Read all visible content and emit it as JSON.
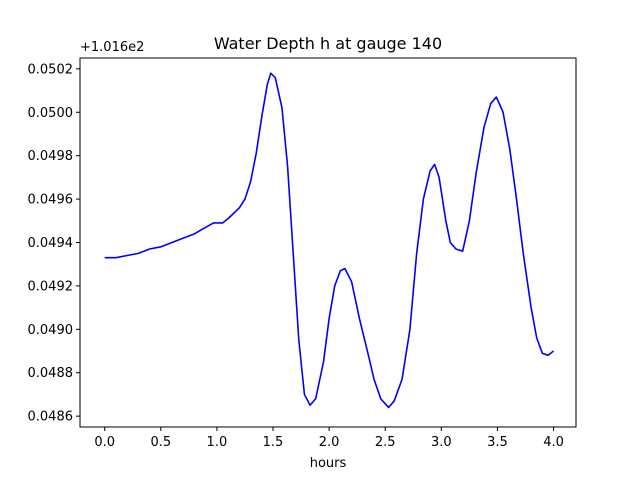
{
  "chart_data": {
    "type": "line",
    "title": "Water Depth h at gauge 140",
    "xlabel": "hours",
    "ylabel": "",
    "y_offset_label": "+1.016e2",
    "xlim": [
      -0.22,
      4.2
    ],
    "ylim": [
      0.04855,
      0.05025
    ],
    "x_ticks": [
      0.0,
      0.5,
      1.0,
      1.5,
      2.0,
      2.5,
      3.0,
      3.5,
      4.0
    ],
    "x_tick_labels": [
      "0.0",
      "0.5",
      "1.0",
      "1.5",
      "2.0",
      "2.5",
      "3.0",
      "3.5",
      "4.0"
    ],
    "y_ticks": [
      0.0486,
      0.0488,
      0.049,
      0.0492,
      0.0494,
      0.0496,
      0.0498,
      0.05,
      0.0502
    ],
    "y_tick_labels": [
      "0.0486",
      "0.0488",
      "0.0490",
      "0.0492",
      "0.0494",
      "0.0496",
      "0.0498",
      "0.0500",
      "0.0502"
    ],
    "grid": false,
    "series": [
      {
        "color": "#0000ff",
        "points": [
          [
            0.0,
            0.04933
          ],
          [
            0.1,
            0.04933
          ],
          [
            0.2,
            0.04934
          ],
          [
            0.3,
            0.04935
          ],
          [
            0.4,
            0.04937
          ],
          [
            0.5,
            0.04938
          ],
          [
            0.6,
            0.0494
          ],
          [
            0.7,
            0.04942
          ],
          [
            0.8,
            0.04944
          ],
          [
            0.9,
            0.04947
          ],
          [
            0.97,
            0.04949
          ],
          [
            1.05,
            0.04949
          ],
          [
            1.1,
            0.04951
          ],
          [
            1.2,
            0.04956
          ],
          [
            1.25,
            0.0496
          ],
          [
            1.3,
            0.04968
          ],
          [
            1.35,
            0.04981
          ],
          [
            1.4,
            0.04998
          ],
          [
            1.45,
            0.05013
          ],
          [
            1.48,
            0.05018
          ],
          [
            1.52,
            0.05016
          ],
          [
            1.58,
            0.05002
          ],
          [
            1.63,
            0.04975
          ],
          [
            1.68,
            0.04935
          ],
          [
            1.73,
            0.04895
          ],
          [
            1.78,
            0.0487
          ],
          [
            1.83,
            0.04865
          ],
          [
            1.88,
            0.04868
          ],
          [
            1.95,
            0.04885
          ],
          [
            2.0,
            0.04905
          ],
          [
            2.05,
            0.0492
          ],
          [
            2.1,
            0.04927
          ],
          [
            2.14,
            0.04928
          ],
          [
            2.2,
            0.04922
          ],
          [
            2.27,
            0.04905
          ],
          [
            2.35,
            0.04888
          ],
          [
            2.4,
            0.04877
          ],
          [
            2.46,
            0.04868
          ],
          [
            2.53,
            0.04864
          ],
          [
            2.58,
            0.04867
          ],
          [
            2.65,
            0.04877
          ],
          [
            2.72,
            0.049
          ],
          [
            2.78,
            0.04935
          ],
          [
            2.84,
            0.0496
          ],
          [
            2.9,
            0.04973
          ],
          [
            2.94,
            0.04976
          ],
          [
            2.98,
            0.0497
          ],
          [
            3.04,
            0.0495
          ],
          [
            3.08,
            0.0494
          ],
          [
            3.13,
            0.04937
          ],
          [
            3.19,
            0.04936
          ],
          [
            3.25,
            0.0495
          ],
          [
            3.31,
            0.04972
          ],
          [
            3.38,
            0.04993
          ],
          [
            3.44,
            0.05004
          ],
          [
            3.49,
            0.05007
          ],
          [
            3.55,
            0.05
          ],
          [
            3.61,
            0.04983
          ],
          [
            3.67,
            0.0496
          ],
          [
            3.73,
            0.04935
          ],
          [
            3.8,
            0.0491
          ],
          [
            3.85,
            0.04896
          ],
          [
            3.9,
            0.04889
          ],
          [
            3.95,
            0.04888
          ],
          [
            4.0,
            0.0489
          ]
        ]
      }
    ]
  }
}
